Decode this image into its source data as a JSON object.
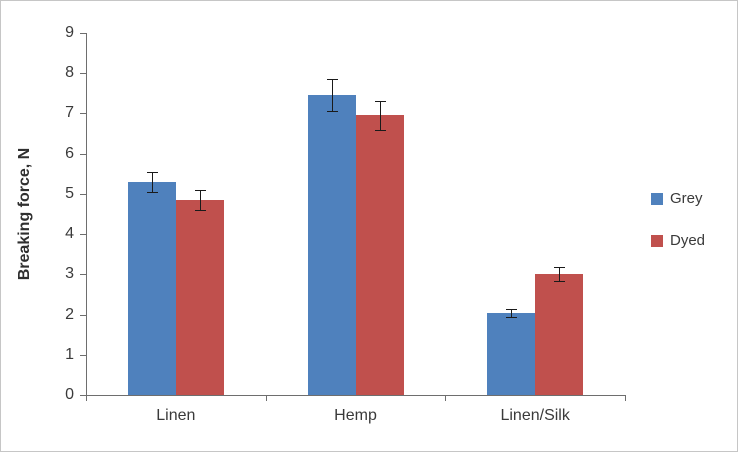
{
  "chart_data": {
    "type": "bar",
    "title": "",
    "categories": [
      "Linen",
      "Hemp",
      "Linen/Silk"
    ],
    "series": [
      {
        "name": "Grey",
        "color": "#4f81bd",
        "values": [
          5.3,
          7.45,
          2.05
        ],
        "errors": [
          0.25,
          0.4,
          0.1
        ]
      },
      {
        "name": "Dyed",
        "color": "#c0504d",
        "values": [
          4.85,
          6.95,
          3.0
        ],
        "errors": [
          0.25,
          0.35,
          0.17
        ]
      }
    ],
    "xlabel": "",
    "ylabel": "Breaking force, N",
    "ylim": [
      0,
      9
    ],
    "ytick_step": 1,
    "grid": false,
    "legend_position": "right",
    "error_bars": true
  }
}
